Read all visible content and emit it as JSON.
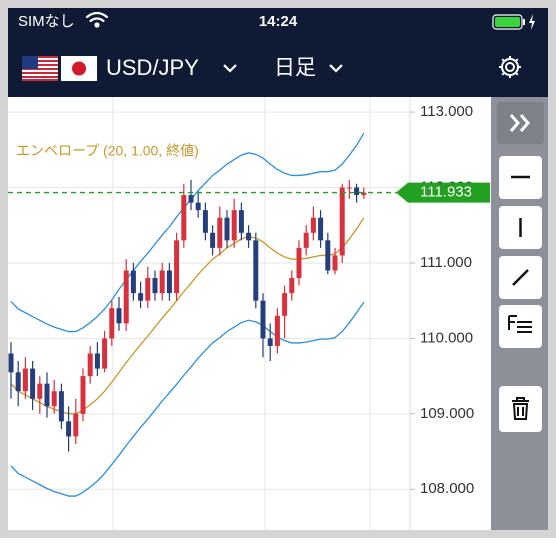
{
  "status_bar": {
    "carrier": "SIMなし",
    "time": "14:24"
  },
  "header": {
    "pair": "USD/JPY",
    "timeframe": "日足"
  },
  "chart_data": {
    "type": "candlestick",
    "legend": "エンベロープ (20, 1.00, 終値)",
    "up_color": "#d9303e",
    "down_color": "#253e7c",
    "ohlc": [
      [
        109.8,
        109.95,
        109.2,
        109.55
      ],
      [
        109.55,
        109.7,
        109.1,
        109.3
      ],
      [
        109.3,
        109.75,
        109.2,
        109.6
      ],
      [
        109.6,
        109.7,
        109.05,
        109.2
      ],
      [
        109.2,
        109.5,
        109.0,
        109.4
      ],
      [
        109.4,
        109.55,
        108.95,
        109.1
      ],
      [
        109.1,
        109.45,
        109.0,
        109.3
      ],
      [
        109.3,
        109.4,
        108.8,
        108.9
      ],
      [
        108.9,
        109.1,
        108.5,
        108.7
      ],
      [
        108.7,
        109.2,
        108.6,
        109.0
      ],
      [
        109.0,
        109.6,
        108.9,
        109.5
      ],
      [
        109.5,
        109.9,
        109.4,
        109.8
      ],
      [
        109.8,
        109.95,
        109.5,
        109.6
      ],
      [
        109.6,
        110.1,
        109.55,
        110.0
      ],
      [
        110.0,
        110.5,
        109.9,
        110.4
      ],
      [
        110.4,
        110.55,
        110.1,
        110.2
      ],
      [
        110.2,
        111.05,
        110.1,
        110.9
      ],
      [
        110.9,
        111.0,
        110.5,
        110.6
      ],
      [
        110.6,
        110.75,
        110.4,
        110.5
      ],
      [
        110.5,
        110.95,
        110.4,
        110.8
      ],
      [
        110.8,
        110.9,
        110.5,
        110.6
      ],
      [
        110.6,
        111.0,
        110.5,
        110.9
      ],
      [
        110.9,
        111.0,
        110.5,
        110.6
      ],
      [
        110.6,
        111.4,
        110.5,
        111.3
      ],
      [
        111.3,
        112.05,
        111.2,
        111.9
      ],
      [
        111.9,
        112.1,
        111.7,
        111.8
      ],
      [
        111.8,
        111.95,
        111.6,
        111.7
      ],
      [
        111.7,
        111.8,
        111.3,
        111.4
      ],
      [
        111.4,
        111.5,
        111.1,
        111.2
      ],
      [
        111.2,
        111.75,
        111.1,
        111.6
      ],
      [
        111.6,
        111.7,
        111.2,
        111.3
      ],
      [
        111.3,
        111.85,
        111.2,
        111.7
      ],
      [
        111.7,
        111.8,
        111.3,
        111.4
      ],
      [
        111.4,
        111.5,
        111.2,
        111.3
      ],
      [
        111.3,
        111.4,
        110.4,
        110.5
      ],
      [
        110.5,
        110.6,
        109.75,
        110.0
      ],
      [
        110.0,
        110.2,
        109.7,
        109.9
      ],
      [
        109.9,
        110.4,
        109.8,
        110.3
      ],
      [
        110.3,
        110.7,
        110.0,
        110.6
      ],
      [
        110.6,
        110.9,
        110.5,
        110.8
      ],
      [
        110.8,
        111.3,
        110.7,
        111.2
      ],
      [
        111.2,
        111.5,
        111.1,
        111.4
      ],
      [
        111.4,
        111.75,
        111.3,
        111.6
      ],
      [
        111.6,
        111.7,
        111.2,
        111.3
      ],
      [
        111.3,
        111.4,
        110.85,
        110.9
      ],
      [
        110.9,
        111.2,
        110.85,
        111.1
      ],
      [
        111.1,
        112.05,
        111.0,
        112.0
      ],
      [
        112.0,
        112.1,
        111.85,
        112.0
      ],
      [
        112.0,
        112.05,
        111.8,
        111.9
      ],
      [
        111.9,
        112.0,
        111.85,
        111.933
      ]
    ],
    "envelope": {
      "middle": {
        "color": "#c9962a",
        "values": [
          109.4,
          109.3,
          109.25,
          109.2,
          109.15,
          109.1,
          109.06,
          109.03,
          109.0,
          109.0,
          109.05,
          109.12,
          109.2,
          109.3,
          109.42,
          109.55,
          109.68,
          109.8,
          109.92,
          110.03,
          110.15,
          110.27,
          110.38,
          110.5,
          110.62,
          110.73,
          110.85,
          110.95,
          111.05,
          111.12,
          111.2,
          111.26,
          111.32,
          111.35,
          111.33,
          111.28,
          111.2,
          111.13,
          111.08,
          111.05,
          111.05,
          111.06,
          111.08,
          111.1,
          111.1,
          111.12,
          111.2,
          111.32,
          111.45,
          111.6
        ]
      },
      "upper": {
        "color": "#2a8fe0",
        "values": [
          110.49,
          110.39,
          110.34,
          110.29,
          110.24,
          110.19,
          110.15,
          110.12,
          110.09,
          110.09,
          110.14,
          110.21,
          110.29,
          110.39,
          110.51,
          110.65,
          110.78,
          110.9,
          111.02,
          111.13,
          111.25,
          111.37,
          111.48,
          111.61,
          111.73,
          111.84,
          111.96,
          112.06,
          112.16,
          112.23,
          112.31,
          112.37,
          112.43,
          112.46,
          112.44,
          112.39,
          112.31,
          112.24,
          112.19,
          112.16,
          112.16,
          112.17,
          112.19,
          112.21,
          112.21,
          112.23,
          112.31,
          112.43,
          112.56,
          112.72
        ]
      },
      "lower": {
        "color": "#2a8fe0",
        "values": [
          108.31,
          108.21,
          108.16,
          108.11,
          108.06,
          108.01,
          107.97,
          107.94,
          107.91,
          107.91,
          107.96,
          108.03,
          108.11,
          108.21,
          108.33,
          108.45,
          108.58,
          108.7,
          108.82,
          108.93,
          109.05,
          109.17,
          109.28,
          109.39,
          109.51,
          109.62,
          109.74,
          109.84,
          109.94,
          110.01,
          110.09,
          110.15,
          110.21,
          110.24,
          110.22,
          110.17,
          110.09,
          110.02,
          109.97,
          109.94,
          109.94,
          109.95,
          109.97,
          109.99,
          109.99,
          110.01,
          110.09,
          110.21,
          110.34,
          110.48
        ]
      }
    },
    "ylim": [
      107.46,
      113.2
    ],
    "yticks": [
      {
        "value": 108,
        "label": "108.000"
      },
      {
        "value": 109,
        "label": "109.000"
      },
      {
        "value": 110,
        "label": "110.000"
      },
      {
        "value": 111,
        "label": "111.000"
      },
      {
        "value": 112,
        "label": "112.000"
      },
      {
        "value": 113,
        "label": "113.000"
      }
    ],
    "grid": true,
    "last_price": 111.933,
    "last_price_color": "#22a022"
  }
}
